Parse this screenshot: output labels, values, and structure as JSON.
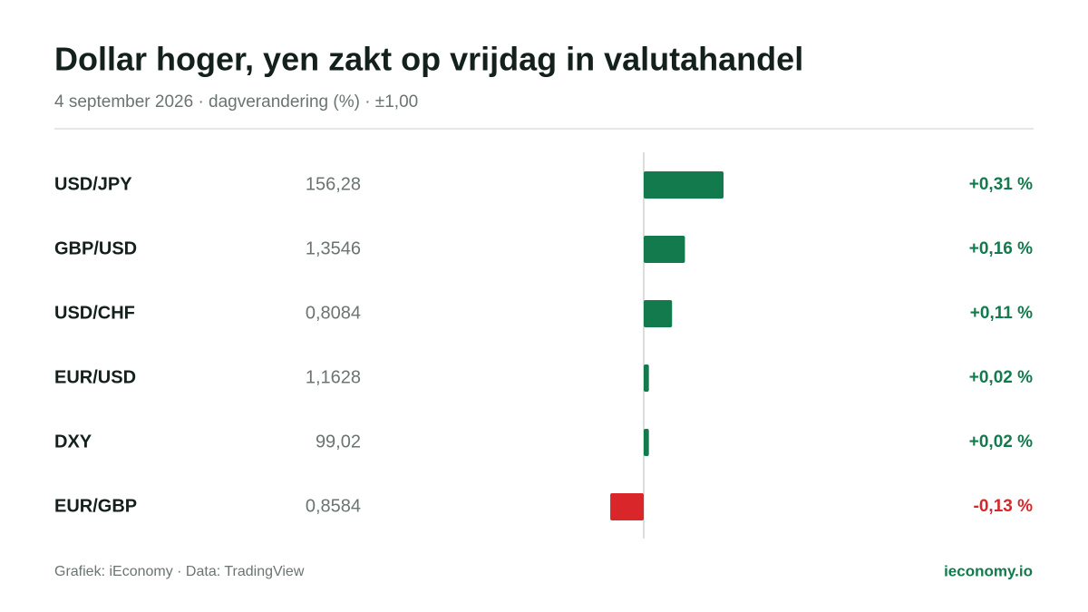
{
  "chart_data": {
    "type": "bar",
    "orientation": "horizontal",
    "title": "Dollar hoger, yen zakt op vrijdag in valutahandel",
    "subtitle": "4 september 2026 · dagverandering (%) · ±1,00",
    "categories": [
      "USD/JPY",
      "GBP/USD",
      "USD/CHF",
      "EUR/USD",
      "DXY",
      "EUR/GBP"
    ],
    "rates": [
      "156,28",
      "1,3546",
      "0,8084",
      "1,1628",
      "99,02",
      "0,8584"
    ],
    "values": [
      0.31,
      0.16,
      0.11,
      0.02,
      0.02,
      -0.13
    ],
    "value_labels": [
      "+0,31 %",
      "+0,16 %",
      "+0,11 %",
      "+0,02 %",
      "+0,02 %",
      "-0,13 %"
    ],
    "xlim": [
      -1,
      1
    ],
    "positive_color": "#127a4d",
    "negative_color": "#d9262b",
    "source": "Grafiek: iEconomy · Data: TradingView",
    "brand": "ieconomy.io"
  }
}
